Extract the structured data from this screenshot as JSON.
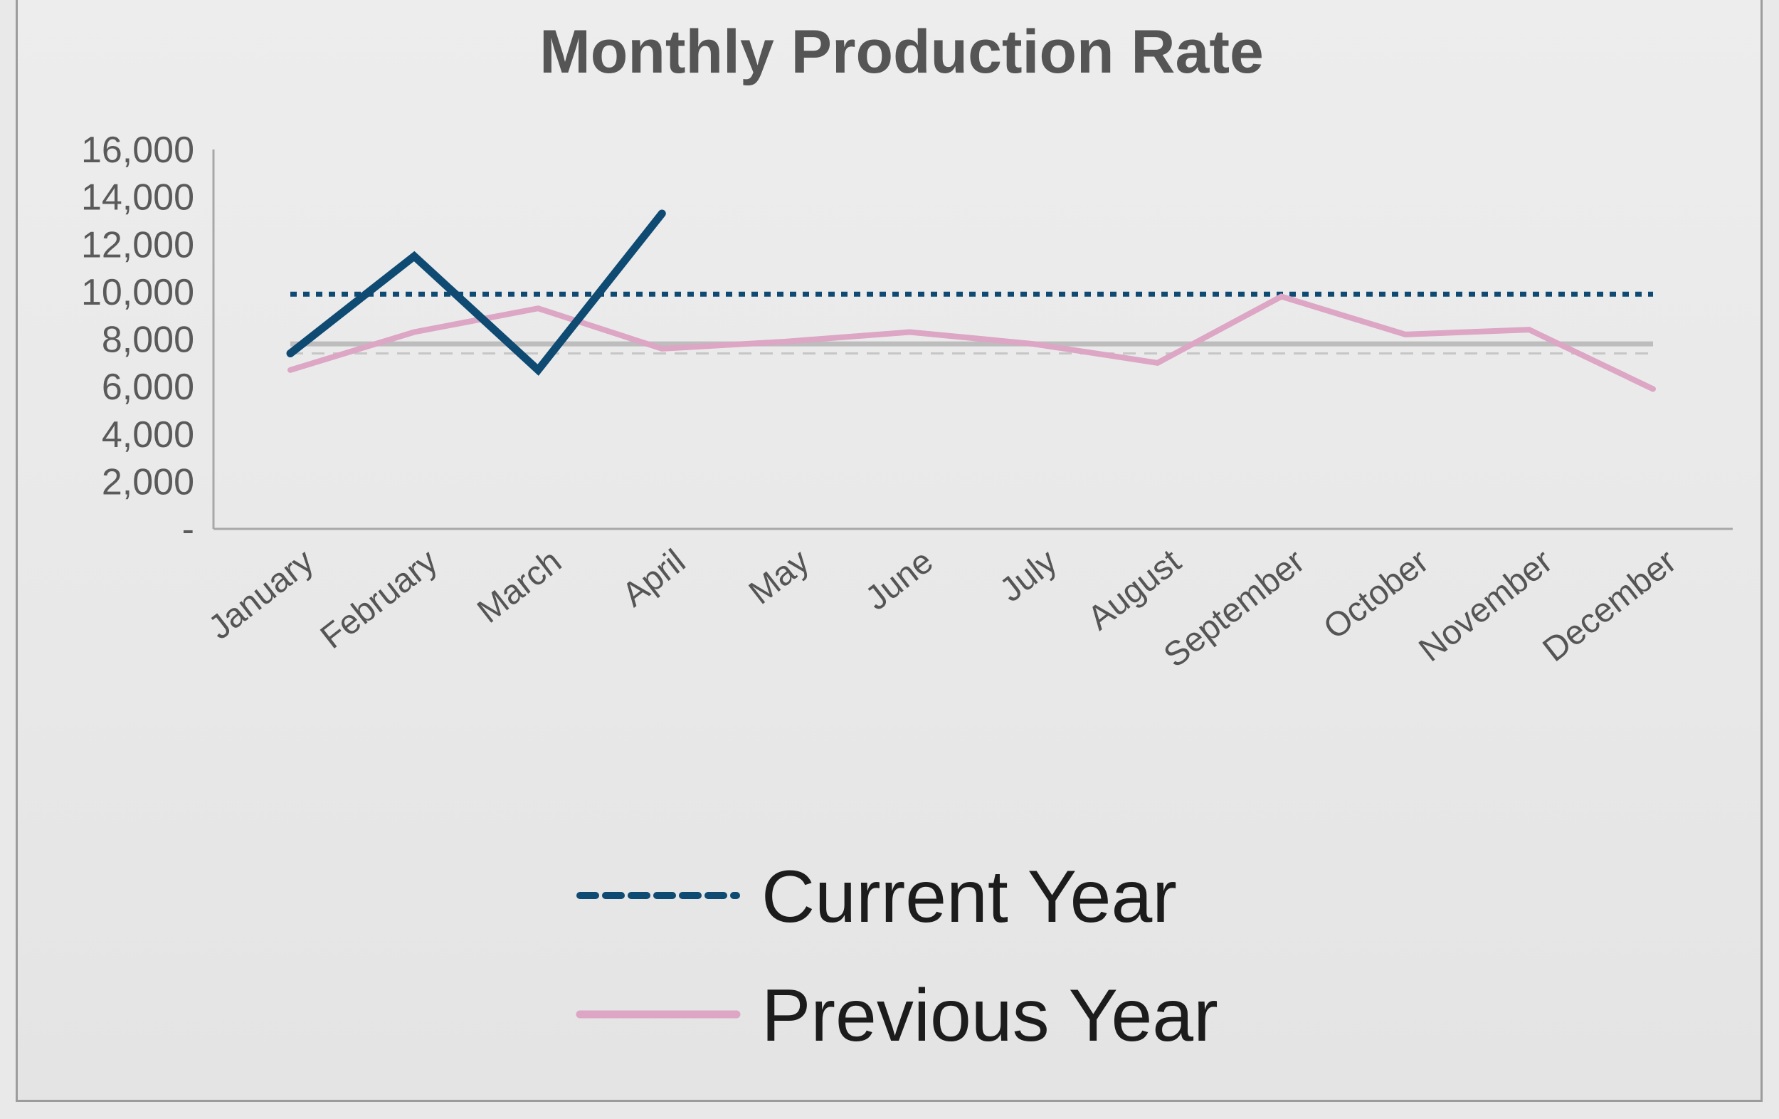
{
  "chart_data": {
    "type": "line",
    "title": "Monthly Production Rate",
    "xlabel": "",
    "ylabel": "",
    "categories": [
      "January",
      "February",
      "March",
      "April",
      "May",
      "June",
      "July",
      "August",
      "September",
      "October",
      "November",
      "December"
    ],
    "y_tick_labels": [
      "-",
      "2,000",
      "4,000",
      "6,000",
      "8,000",
      "10,000",
      "12,000",
      "14,000",
      "16,000"
    ],
    "y_ticks": [
      0,
      2000,
      4000,
      6000,
      8000,
      10000,
      12000,
      14000,
      16000
    ],
    "ylim": [
      0,
      16000
    ],
    "grid": false,
    "legend_position": "bottom-center",
    "series": [
      {
        "name": "Current Year",
        "values": [
          7400,
          11500,
          6700,
          13300,
          null,
          null,
          null,
          null,
          null,
          null,
          null,
          null
        ],
        "color": "#0e4a72"
      },
      {
        "name": "Previous Year",
        "values": [
          6700,
          8300,
          9300,
          7600,
          7900,
          8300,
          7800,
          7000,
          9800,
          8200,
          8400,
          5900
        ],
        "color": "#dca6c4"
      }
    ],
    "reference_lines": [
      {
        "value": 9900,
        "style": "dotted",
        "color": "#0e4a72"
      },
      {
        "value": 7800,
        "style": "solid",
        "color": "#bdbdbd"
      },
      {
        "value": 7400,
        "style": "dashed",
        "color": "#c6c6c6"
      }
    ],
    "legend": [
      {
        "label": "Current Year",
        "style": "dashed",
        "color": "#0e4a72"
      },
      {
        "label": "Previous Year",
        "style": "solid",
        "color": "#dca6c4"
      }
    ]
  }
}
